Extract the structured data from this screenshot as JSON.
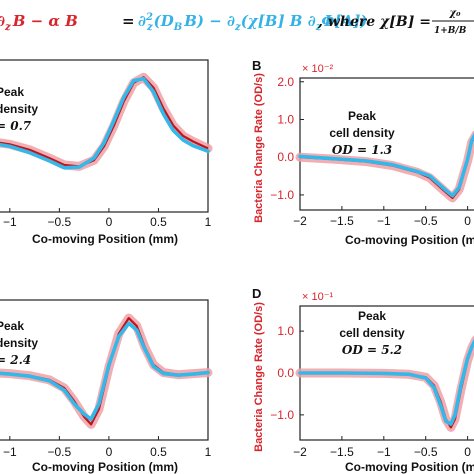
{
  "equation": {
    "lhs_fragment": "∂",
    "lhs_rest": "B − α B",
    "equals": "=",
    "rhs_part1": "∂",
    "rhs_part2": "(D",
    "rhs_part3": "B) − ∂",
    "rhs_part4": "(χ[B] B ∂",
    "rhs_part5": "Φ[A])",
    "sub_z": "z",
    "sup_2": "2",
    "sub_B": "B",
    "where_text": ", where χ[B] =",
    "frac_num": "χ₀",
    "frac_den": "1+B/B"
  },
  "colors": {
    "red": "#c0141c",
    "red_band": "#f0a0a4",
    "blue": "#33b8ea",
    "axis_label_red": "#d8252c"
  },
  "chart_data": [
    {
      "panel": "A",
      "type": "line",
      "panel_label": "",
      "annotation": [
        "Peak",
        "density",
        "= 0.7"
      ],
      "xlabel": "Co-moving Position (mm)",
      "xticks": [
        "−1",
        "−0.5",
        "0",
        "0.5",
        "1"
      ],
      "xlim": [
        -1.2,
        1.0
      ],
      "ylim": [
        -0.9,
        1.3
      ],
      "series": [
        {
          "color": "red",
          "x": [
            -1.2,
            -1.0,
            -0.8,
            -0.6,
            -0.45,
            -0.3,
            -0.15,
            -0.05,
            0.05,
            0.15,
            0.25,
            0.35,
            0.45,
            0.55,
            0.65,
            0.75,
            0.85,
            1.0
          ],
          "y": [
            0.12,
            0.08,
            0.0,
            -0.12,
            -0.22,
            -0.24,
            -0.15,
            0.05,
            0.35,
            0.7,
            0.97,
            1.05,
            0.9,
            0.6,
            0.35,
            0.2,
            0.12,
            0.02
          ]
        },
        {
          "color": "blue",
          "x": [
            -1.2,
            -1.0,
            -0.8,
            -0.6,
            -0.45,
            -0.3,
            -0.15,
            -0.05,
            0.05,
            0.15,
            0.25,
            0.35,
            0.45,
            0.55,
            0.65,
            0.75,
            0.85,
            1.0
          ],
          "y": [
            0.1,
            0.05,
            -0.04,
            -0.16,
            -0.26,
            -0.25,
            -0.12,
            0.1,
            0.42,
            0.76,
            1.0,
            1.03,
            0.84,
            0.52,
            0.28,
            0.14,
            0.06,
            -0.02
          ]
        }
      ]
    },
    {
      "panel": "B",
      "type": "line",
      "panel_label": "B",
      "annotation": [
        "Peak",
        "cell density",
        "OD = 1.3"
      ],
      "ylabel": "Bacteria Change Rate (OD/s)",
      "yexp": "× 10⁻²",
      "xlabel": "Co-moving Position (mm)",
      "xticks": [
        "−2",
        "−1.5",
        "−1",
        "−0.5",
        "0"
      ],
      "yticks": [
        "2.0",
        "1.0",
        "0.0",
        "−1.0"
      ],
      "xlim": [
        -2.0,
        0.1
      ],
      "ylim": [
        -1.4,
        2.1
      ],
      "series": [
        {
          "color": "red",
          "x": [
            -2.0,
            -1.6,
            -1.2,
            -0.9,
            -0.6,
            -0.45,
            -0.35,
            -0.25,
            -0.18,
            -0.1,
            0.0,
            0.05,
            0.1
          ],
          "y": [
            0.0,
            -0.05,
            -0.12,
            -0.22,
            -0.4,
            -0.55,
            -0.75,
            -0.95,
            -1.08,
            -0.85,
            -0.1,
            0.4,
            0.6
          ]
        },
        {
          "color": "blue",
          "x": [
            -2.0,
            -1.6,
            -1.2,
            -0.9,
            -0.6,
            -0.45,
            -0.35,
            -0.25,
            -0.18,
            -0.1,
            0.0,
            0.05,
            0.1
          ],
          "y": [
            0.02,
            -0.04,
            -0.1,
            -0.2,
            -0.38,
            -0.5,
            -0.7,
            -0.9,
            -1.02,
            -0.8,
            -0.05,
            0.45,
            0.65
          ]
        }
      ]
    },
    {
      "panel": "C",
      "type": "line",
      "panel_label": "",
      "annotation": [
        "Peak",
        "density",
        "= 2.4"
      ],
      "xlabel": "Co-moving Position (mm)",
      "xticks": [
        "−1",
        "−0.5",
        "0",
        "0.5",
        "1"
      ],
      "xlim": [
        -1.2,
        1.0
      ],
      "ylim": [
        -1.3,
        1.4
      ],
      "series": [
        {
          "color": "red",
          "x": [
            -1.2,
            -1.0,
            -0.8,
            -0.6,
            -0.45,
            -0.35,
            -0.25,
            -0.18,
            -0.1,
            0.0,
            0.1,
            0.2,
            0.28,
            0.36,
            0.45,
            0.55,
            0.7,
            0.85,
            1.0
          ],
          "y": [
            0.0,
            -0.02,
            -0.06,
            -0.14,
            -0.3,
            -0.55,
            -0.85,
            -1.0,
            -0.7,
            0.1,
            0.75,
            1.05,
            0.9,
            0.5,
            0.15,
            0.0,
            -0.04,
            -0.02,
            0.0
          ]
        },
        {
          "color": "blue",
          "x": [
            -1.2,
            -1.0,
            -0.8,
            -0.6,
            -0.45,
            -0.35,
            -0.25,
            -0.18,
            -0.1,
            0.0,
            0.1,
            0.2,
            0.28,
            0.36,
            0.45,
            0.55,
            0.7,
            0.85,
            1.0
          ],
          "y": [
            0.0,
            -0.03,
            -0.07,
            -0.16,
            -0.34,
            -0.6,
            -0.8,
            -0.9,
            -0.6,
            0.15,
            0.7,
            0.95,
            0.82,
            0.46,
            0.12,
            -0.02,
            -0.05,
            -0.03,
            0.0
          ]
        }
      ]
    },
    {
      "panel": "D",
      "type": "line",
      "panel_label": "D",
      "annotation": [
        "Peak",
        "cell density",
        "OD = 5.2"
      ],
      "ylabel": "Bacteria Change Rate (OD/s)",
      "yexp": "× 10⁻¹",
      "xlabel": "Co-moving Position (mm)",
      "xticks": [
        "−2",
        "−1.5",
        "−1",
        "−0.5",
        "0"
      ],
      "yticks": [
        "1.0",
        "0.0",
        "−1.0"
      ],
      "xlim": [
        -2.0,
        0.1
      ],
      "ylim": [
        -1.6,
        1.6
      ],
      "series": [
        {
          "color": "red",
          "x": [
            -2.0,
            -1.5,
            -1.0,
            -0.7,
            -0.5,
            -0.4,
            -0.32,
            -0.26,
            -0.2,
            -0.15,
            -0.08,
            0.0,
            0.05,
            0.1
          ],
          "y": [
            0.0,
            0.0,
            -0.01,
            -0.03,
            -0.1,
            -0.3,
            -0.7,
            -1.1,
            -1.3,
            -1.1,
            -0.4,
            0.3,
            0.6,
            0.8
          ]
        },
        {
          "color": "blue",
          "x": [
            -2.0,
            -1.5,
            -1.0,
            -0.7,
            -0.5,
            -0.4,
            -0.32,
            -0.26,
            -0.2,
            -0.15,
            -0.08,
            0.0,
            0.05,
            0.1
          ],
          "y": [
            0.0,
            0.0,
            -0.01,
            -0.03,
            -0.12,
            -0.35,
            -0.78,
            -1.15,
            -1.22,
            -1.0,
            -0.3,
            0.35,
            0.62,
            0.82
          ]
        }
      ]
    }
  ]
}
